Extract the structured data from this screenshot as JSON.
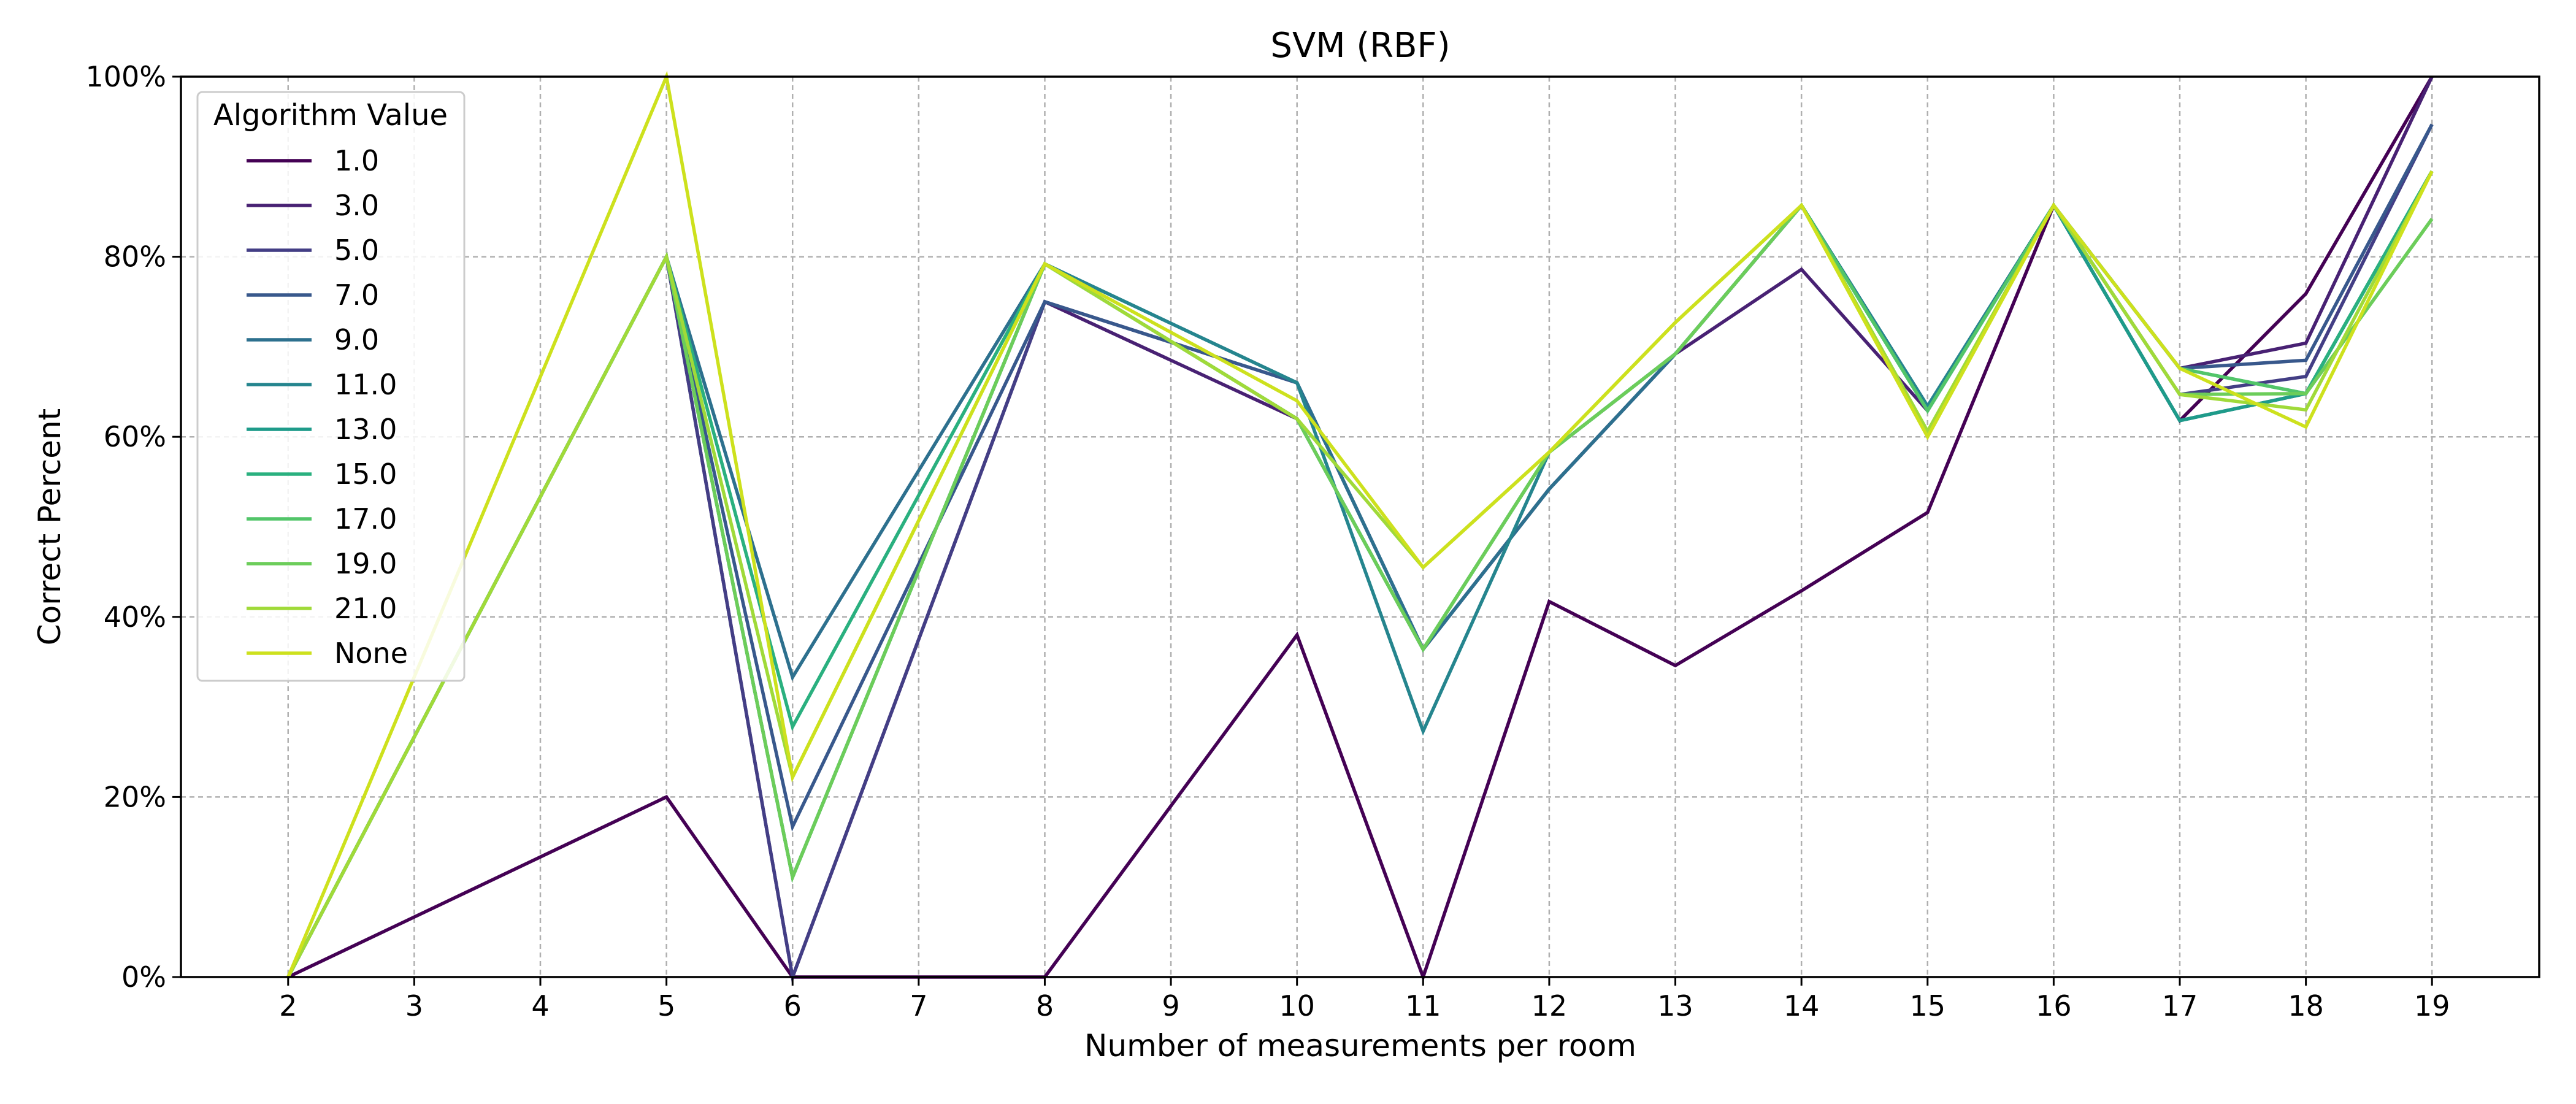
{
  "chart_data": {
    "type": "line",
    "title": "SVM (RBF)",
    "xlabel": "Number of measurements per room",
    "ylabel": "Correct Percent",
    "x": [
      2,
      3,
      4,
      5,
      6,
      7,
      8,
      9,
      10,
      11,
      12,
      13,
      14,
      15,
      16,
      17,
      18,
      19
    ],
    "xlim": [
      1.15,
      19.85
    ],
    "ylim": [
      0,
      100
    ],
    "y_ticks": [
      0,
      20,
      40,
      60,
      80,
      100
    ],
    "y_tick_format": "percent",
    "grid": true,
    "legend": {
      "title": "Algorithm Value",
      "position": "upper-left"
    },
    "series": [
      {
        "name": "1.0",
        "color": "#440154",
        "points": [
          [
            2,
            0
          ],
          [
            5,
            20
          ],
          [
            6,
            0
          ],
          [
            8,
            0
          ],
          [
            10,
            38
          ],
          [
            11,
            0
          ],
          [
            12,
            41.7
          ],
          [
            13,
            34.6
          ],
          [
            14,
            42.9
          ],
          [
            15,
            51.6
          ],
          [
            16,
            85.7
          ],
          [
            17,
            61.8
          ],
          [
            18,
            75.9
          ],
          [
            19,
            100
          ]
        ]
      },
      {
        "name": "3.0",
        "color": "#482173",
        "points": [
          [
            2,
            0
          ],
          [
            5,
            80
          ],
          [
            6,
            0
          ],
          [
            8,
            75
          ],
          [
            10,
            62
          ],
          [
            11,
            36.4
          ],
          [
            12,
            54.2
          ],
          [
            13,
            69.2
          ],
          [
            14,
            78.6
          ],
          [
            15,
            62.9
          ],
          [
            16,
            85.7
          ],
          [
            17,
            67.6
          ],
          [
            18,
            70.4
          ],
          [
            19,
            100
          ]
        ]
      },
      {
        "name": "5.0",
        "color": "#433e85",
        "points": [
          [
            2,
            0
          ],
          [
            5,
            80
          ],
          [
            6,
            0
          ],
          [
            8,
            75
          ],
          [
            10,
            66
          ],
          [
            11,
            36.4
          ],
          [
            12,
            54.2
          ],
          [
            13,
            69.2
          ],
          [
            14,
            85.7
          ],
          [
            15,
            63.4
          ],
          [
            16,
            85.7
          ],
          [
            17,
            64.7
          ],
          [
            18,
            66.7
          ],
          [
            19,
            94.7
          ]
        ]
      },
      {
        "name": "7.0",
        "color": "#38588c",
        "points": [
          [
            2,
            0
          ],
          [
            5,
            80
          ],
          [
            6,
            16.7
          ],
          [
            8,
            75
          ],
          [
            10,
            66
          ],
          [
            11,
            36.4
          ],
          [
            12,
            54.2
          ],
          [
            13,
            69.2
          ],
          [
            14,
            85.7
          ],
          [
            15,
            63.4
          ],
          [
            16,
            85.7
          ],
          [
            17,
            67.6
          ],
          [
            18,
            68.5
          ],
          [
            19,
            94.7
          ]
        ]
      },
      {
        "name": "9.0",
        "color": "#2d708e",
        "points": [
          [
            2,
            0
          ],
          [
            5,
            80
          ],
          [
            6,
            33.3
          ],
          [
            8,
            79.2
          ],
          [
            10,
            66
          ],
          [
            11,
            36.4
          ],
          [
            12,
            54.2
          ],
          [
            13,
            69.2
          ],
          [
            14,
            85.7
          ],
          [
            15,
            63.4
          ],
          [
            16,
            85.7
          ],
          [
            17,
            61.8
          ],
          [
            18,
            64.8
          ],
          [
            19,
            89.5
          ]
        ]
      },
      {
        "name": "11.0",
        "color": "#25858e",
        "points": [
          [
            2,
            0
          ],
          [
            5,
            80
          ],
          [
            6,
            11.1
          ],
          [
            8,
            79.2
          ],
          [
            10,
            66
          ],
          [
            11,
            27.3
          ],
          [
            12,
            58.3
          ],
          [
            13,
            69.2
          ],
          [
            14,
            85.7
          ],
          [
            15,
            63.4
          ],
          [
            16,
            85.7
          ],
          [
            17,
            61.8
          ],
          [
            18,
            64.8
          ],
          [
            19,
            89.5
          ]
        ]
      },
      {
        "name": "13.0",
        "color": "#1e9b8a",
        "points": [
          [
            2,
            0
          ],
          [
            5,
            80
          ],
          [
            6,
            11.1
          ],
          [
            8,
            79.2
          ],
          [
            10,
            62
          ],
          [
            11,
            36.4
          ],
          [
            12,
            58.3
          ],
          [
            13,
            69.2
          ],
          [
            14,
            85.7
          ],
          [
            15,
            62.9
          ],
          [
            16,
            85.7
          ],
          [
            17,
            61.8
          ],
          [
            18,
            64.8
          ],
          [
            19,
            89.5
          ]
        ]
      },
      {
        "name": "15.0",
        "color": "#2ab07f",
        "points": [
          [
            2,
            0
          ],
          [
            5,
            80
          ],
          [
            6,
            27.8
          ],
          [
            8,
            79.2
          ],
          [
            10,
            62
          ],
          [
            11,
            36.4
          ],
          [
            12,
            58.3
          ],
          [
            13,
            69.2
          ],
          [
            14,
            85.7
          ],
          [
            15,
            62.9
          ],
          [
            16,
            85.7
          ],
          [
            17,
            67.6
          ],
          [
            18,
            64.8
          ],
          [
            19,
            89.5
          ]
        ]
      },
      {
        "name": "17.0",
        "color": "#52c569",
        "points": [
          [
            2,
            0
          ],
          [
            5,
            80
          ],
          [
            6,
            11.1
          ],
          [
            8,
            79.2
          ],
          [
            10,
            62
          ],
          [
            11,
            36.4
          ],
          [
            12,
            58.3
          ],
          [
            13,
            69.2
          ],
          [
            14,
            85.7
          ],
          [
            15,
            62.9
          ],
          [
            16,
            85.7
          ],
          [
            17,
            67.6
          ],
          [
            18,
            64.8
          ],
          [
            19,
            84.2
          ]
        ]
      },
      {
        "name": "19.0",
        "color": "#6ccd5a",
        "points": [
          [
            2,
            0
          ],
          [
            5,
            80
          ],
          [
            6,
            11.1
          ],
          [
            8,
            79.2
          ],
          [
            10,
            62
          ],
          [
            11,
            36.4
          ],
          [
            12,
            58.3
          ],
          [
            13,
            69.2
          ],
          [
            14,
            85.7
          ],
          [
            15,
            60.6
          ],
          [
            16,
            85.7
          ],
          [
            17,
            64.7
          ],
          [
            18,
            64.8
          ],
          [
            19,
            84.2
          ]
        ]
      },
      {
        "name": "21.0",
        "color": "#a0da39",
        "points": [
          [
            2,
            0
          ],
          [
            5,
            80
          ],
          [
            6,
            22.2
          ],
          [
            8,
            79.2
          ],
          [
            10,
            62
          ],
          [
            11,
            45.5
          ],
          [
            12,
            58.3
          ],
          [
            13,
            72.7
          ],
          [
            14,
            85.7
          ],
          [
            15,
            60.6
          ],
          [
            16,
            85.7
          ],
          [
            17,
            64.7
          ],
          [
            18,
            63
          ],
          [
            19,
            89.5
          ]
        ]
      },
      {
        "name": "None",
        "color": "#cde11d",
        "points": [
          [
            2,
            0
          ],
          [
            5,
            100
          ],
          [
            6,
            22.2
          ],
          [
            8,
            79.2
          ],
          [
            10,
            64
          ],
          [
            11,
            45.5
          ],
          [
            12,
            58.3
          ],
          [
            13,
            72.7
          ],
          [
            14,
            85.7
          ],
          [
            15,
            60
          ],
          [
            16,
            85.7
          ],
          [
            17,
            67.6
          ],
          [
            18,
            61.1
          ],
          [
            19,
            89.5
          ]
        ]
      }
    ]
  }
}
